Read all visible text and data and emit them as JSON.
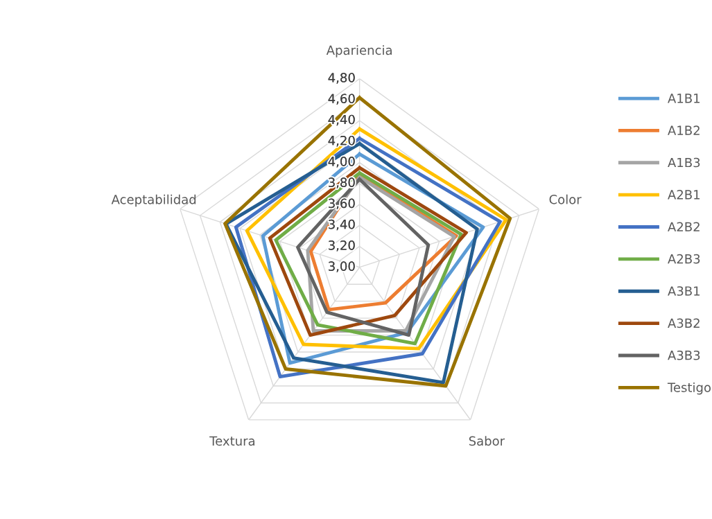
{
  "chart_data": {
    "type": "radar",
    "categories": [
      "Apariencia",
      "Color",
      "Sabor",
      "Textura",
      "Aceptabilidad"
    ],
    "ylim": [
      3.0,
      4.8
    ],
    "yticks": [
      {
        "value": 3.0,
        "label": "3,00"
      },
      {
        "value": 3.2,
        "label": "3,20"
      },
      {
        "value": 3.4,
        "label": "3,40"
      },
      {
        "value": 3.6,
        "label": "3,60"
      },
      {
        "value": 3.8,
        "label": "3,80"
      },
      {
        "value": 4.0,
        "label": "4,00"
      },
      {
        "value": 4.2,
        "label": "4,20"
      },
      {
        "value": 4.4,
        "label": "4,40"
      },
      {
        "value": 4.6,
        "label": "4,60"
      },
      {
        "value": 4.8,
        "label": "4,80"
      }
    ],
    "grid": true,
    "legend": "right",
    "series": [
      {
        "name": "A1B1",
        "color": "#5b9bd5",
        "values": [
          4.08,
          4.24,
          3.77,
          4.13,
          3.97
        ]
      },
      {
        "name": "A1B2",
        "color": "#ed7d31",
        "values": [
          3.88,
          3.97,
          3.42,
          3.5,
          3.49
        ]
      },
      {
        "name": "A1B3",
        "color": "#a5a5a5",
        "values": [
          3.86,
          3.95,
          3.75,
          3.75,
          3.52
        ]
      },
      {
        "name": "A2B1",
        "color": "#ffc000",
        "values": [
          4.32,
          4.47,
          3.96,
          3.91,
          4.13
        ]
      },
      {
        "name": "A2B2",
        "color": "#4472c4",
        "values": [
          4.23,
          4.41,
          4.02,
          4.29,
          4.24
        ]
      },
      {
        "name": "A2B3",
        "color": "#70ad47",
        "values": [
          3.9,
          4.02,
          3.9,
          3.68,
          3.84
        ]
      },
      {
        "name": "A3B1",
        "color": "#255e91",
        "values": [
          4.18,
          4.18,
          4.36,
          4.07,
          4.34
        ]
      },
      {
        "name": "A3B2",
        "color": "#9e480e",
        "values": [
          3.95,
          4.07,
          3.57,
          3.8,
          3.9
        ]
      },
      {
        "name": "A3B3",
        "color": "#636363",
        "values": [
          3.84,
          3.69,
          3.8,
          3.53,
          3.62
        ]
      },
      {
        "name": "Testigo",
        "color": "#997300",
        "values": [
          4.62,
          4.51,
          4.4,
          4.2,
          4.35
        ]
      }
    ]
  }
}
